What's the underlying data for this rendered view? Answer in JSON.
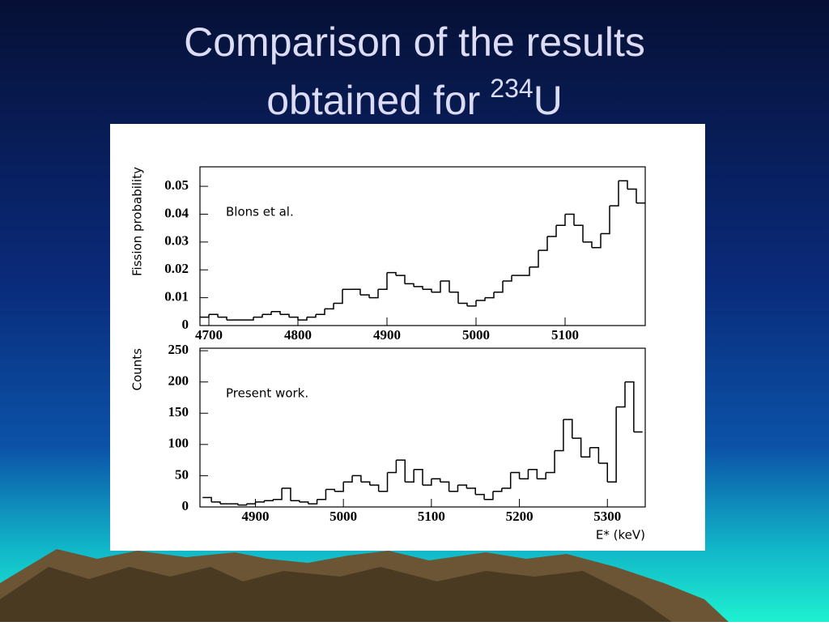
{
  "slide": {
    "title_line1": "Comparison of the results",
    "title_line2": "obtained for",
    "title_sup": "234",
    "title_element": "U"
  },
  "chart_data": [
    {
      "type": "histogram",
      "ylabel": "Fission probability",
      "annotation": "Blons et al.",
      "color": "#000000",
      "bins": [
        4690,
        4700,
        4710,
        4720,
        4730,
        4740,
        4750,
        4760,
        4770,
        4780,
        4790,
        4800,
        4810,
        4820,
        4830,
        4840,
        4850,
        4860,
        4870,
        4880,
        4890,
        4900,
        4910,
        4920,
        4930,
        4940,
        4950,
        4960,
        4970,
        4980,
        4990,
        5000,
        5010,
        5020,
        5030,
        5040,
        5050,
        5060,
        5070,
        5080,
        5090,
        5100,
        5110,
        5120,
        5130,
        5140,
        5150,
        5160,
        5170,
        5180,
        5190
      ],
      "values": [
        0.003,
        0.004,
        0.003,
        0.002,
        0.002,
        0.002,
        0.003,
        0.004,
        0.005,
        0.004,
        0.003,
        0.002,
        0.003,
        0.004,
        0.006,
        0.008,
        0.013,
        0.013,
        0.011,
        0.01,
        0.013,
        0.019,
        0.018,
        0.015,
        0.014,
        0.013,
        0.012,
        0.016,
        0.012,
        0.008,
        0.007,
        0.009,
        0.01,
        0.012,
        0.016,
        0.018,
        0.018,
        0.021,
        0.027,
        0.032,
        0.036,
        0.04,
        0.036,
        0.03,
        0.028,
        0.033,
        0.043,
        0.052,
        0.049,
        0.044
      ],
      "xlim": [
        4690,
        5190
      ],
      "ylim": [
        0,
        0.057
      ],
      "xticks": [
        4700,
        4800,
        4900,
        5000,
        5100
      ],
      "yticks": [
        0,
        0.01,
        0.02,
        0.03,
        0.04,
        0.05
      ]
    },
    {
      "type": "histogram",
      "ylabel": "Counts",
      "xlabel": "E* (keV)",
      "annotation": "Present work.",
      "color": "#000000",
      "bins": [
        4840,
        4850,
        4860,
        4870,
        4880,
        4890,
        4900,
        4910,
        4920,
        4930,
        4940,
        4950,
        4960,
        4970,
        4980,
        4990,
        5000,
        5010,
        5020,
        5030,
        5040,
        5050,
        5060,
        5070,
        5080,
        5090,
        5100,
        5110,
        5120,
        5130,
        5140,
        5150,
        5160,
        5170,
        5180,
        5190,
        5200,
        5210,
        5220,
        5230,
        5240,
        5250,
        5260,
        5270,
        5280,
        5290,
        5300,
        5310,
        5320,
        5330,
        5340
      ],
      "values": [
        15,
        8,
        5,
        5,
        3,
        5,
        8,
        10,
        12,
        30,
        10,
        8,
        5,
        12,
        28,
        25,
        40,
        50,
        40,
        35,
        25,
        55,
        75,
        40,
        60,
        35,
        45,
        40,
        25,
        35,
        30,
        20,
        12,
        25,
        30,
        55,
        45,
        60,
        45,
        55,
        90,
        140,
        110,
        80,
        95,
        70,
        40,
        160,
        200,
        120
      ],
      "xlim": [
        4837,
        5343
      ],
      "ylim": [
        0,
        254
      ],
      "xticks": [
        4900,
        5000,
        5100,
        5200,
        5300
      ],
      "yticks": [
        0,
        50,
        100,
        150,
        200,
        250
      ]
    }
  ]
}
